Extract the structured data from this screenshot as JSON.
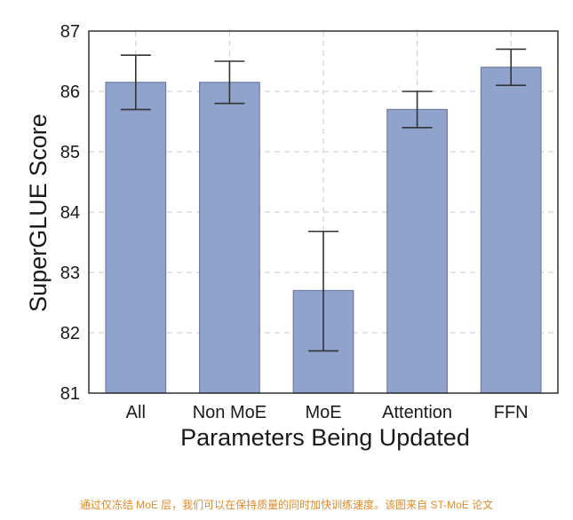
{
  "chart_data": {
    "type": "bar",
    "categories": [
      "All",
      "Non MoE",
      "MoE",
      "Attention",
      "FFN"
    ],
    "values": [
      86.15,
      86.15,
      82.7,
      85.7,
      86.4
    ],
    "error_low": [
      85.7,
      85.8,
      81.7,
      85.4,
      86.1
    ],
    "error_high": [
      86.6,
      86.5,
      83.68,
      86.0,
      86.7
    ],
    "xlabel": "Parameters Being Updated",
    "ylabel": "SuperGLUE Score",
    "ylim": [
      81,
      87
    ],
    "yticks": [
      81,
      82,
      83,
      84,
      85,
      86,
      87
    ],
    "grid": true,
    "colors": {
      "bar_fill": "#8fa3cc",
      "bar_edge": "#6e7d9e",
      "error_bar": "#333333"
    }
  },
  "caption": "通过仅冻结 MoE 层，我们可以在保持质量的同时加快训练速度。该图来自 ST-MoE 论文"
}
